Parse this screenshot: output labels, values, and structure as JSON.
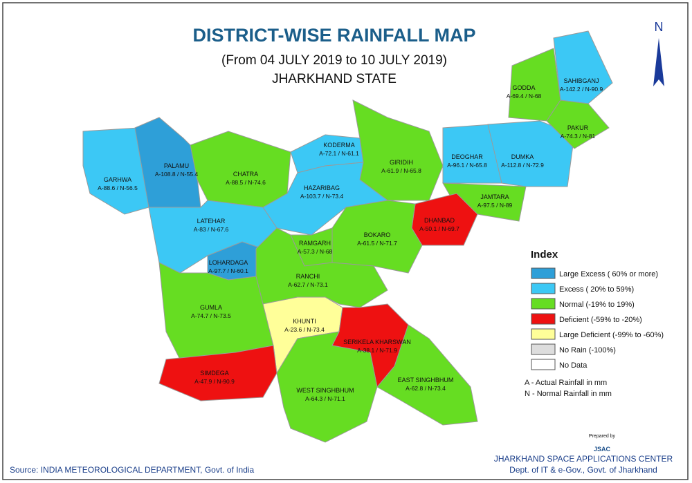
{
  "title": "DISTRICT-WISE RAINFALL MAP",
  "subtitle": "(From 04 JULY 2019  to 10 JULY 2019)",
  "state": "JHARKHAND STATE",
  "north": "N",
  "districts": [
    {
      "name": "GARHWA",
      "label": "A-88.6 / N-56.5"
    },
    {
      "name": "PALAMU",
      "label": "A-108.8 / N-55.4"
    },
    {
      "name": "CHATRA",
      "label": "A-88.5 / N-74.6"
    },
    {
      "name": "KODERMA",
      "label": "A-72.1 / N-61.1"
    },
    {
      "name": "GIRIDIH",
      "label": "A-61.9 / N-65.8"
    },
    {
      "name": "DEOGHAR",
      "label": "A-96.1 / N-65.8"
    },
    {
      "name": "DUMKA",
      "label": "A-112.8 / N-72.9"
    },
    {
      "name": "GODDA",
      "label": "A-69.4 / N-68"
    },
    {
      "name": "SAHIBGANJ",
      "label": "A-142.2 / N-90.9"
    },
    {
      "name": "PAKUR",
      "label": "A-74.3 / N-81"
    },
    {
      "name": "JAMTARA",
      "label": "A-97.5 / N-89"
    },
    {
      "name": "DHANBAD",
      "label": "A-50.1 / N-69.7"
    },
    {
      "name": "HAZARIBAG",
      "label": "A-103.7 / N-73.4"
    },
    {
      "name": "BOKARO",
      "label": "A-61.5 / N-71.7"
    },
    {
      "name": "RAMGARH",
      "label": "A-57.3 / N-68"
    },
    {
      "name": "LATEHAR",
      "label": "A-83 / N-67.6"
    },
    {
      "name": "LOHARDAGA",
      "label": "A-97.7 / N-60.1"
    },
    {
      "name": "RANCHI",
      "label": "A-62.7 / N-73.1"
    },
    {
      "name": "GUMLA",
      "label": "A-74.7 / N-73.5"
    },
    {
      "name": "KHUNTI",
      "label": "A-23.6 / N-73.4"
    },
    {
      "name": "SERIKELA KHARSWAN",
      "label": "A-38.1 / N-71.9"
    },
    {
      "name": "SIMDEGA",
      "label": "A-47.9 / N-90.9"
    },
    {
      "name": "WEST SINGHBHUM",
      "label": "A-64.3 / N-71.1"
    },
    {
      "name": "EAST SINGHBHUM",
      "label": "A-62.8 / N-73.4"
    }
  ],
  "legend": {
    "title": "Index",
    "items": [
      {
        "label": "Large Excess ( 60% or more)",
        "color": "#2e9fd8"
      },
      {
        "label": "Excess ( 20% to 59%)",
        "color": "#3cc8f5"
      },
      {
        "label": "Normal (-19% to 19%)",
        "color": "#66dd22"
      },
      {
        "label": "Deficient (-59% to -20%)",
        "color": "#ee1111"
      },
      {
        "label": "Large Deficient (-99% to -60%)",
        "color": "#ffff99"
      },
      {
        "label": "No Rain (-100%)",
        "color": "#dddddd"
      },
      {
        "label": "No Data",
        "color": "#ffffff"
      }
    ]
  },
  "notes": [
    "A - Actual Rainfall in mm",
    "N - Normal Rainfall in mm"
  ],
  "prepared_by": "Prepared by",
  "logo": "JSAC",
  "organization": [
    "JHARKHAND SPACE APPLICATIONS CENTER",
    "Dept. of IT & e-Gov., Govt. of Jharkhand"
  ],
  "source": "Source: INDIA METEOROLOGICAL DEPARTMENT, Govt. of India"
}
